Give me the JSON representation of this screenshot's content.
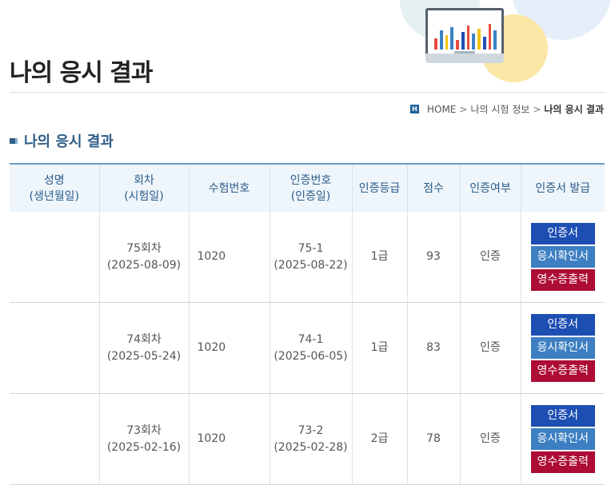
{
  "page": {
    "title": "나의 응시 결과"
  },
  "breadcrumb": {
    "home": "HOME",
    "items": [
      "나의 시험 정보",
      "나의 응시 결과"
    ],
    "separator": ">"
  },
  "section": {
    "title": "나의 응시 결과"
  },
  "table": {
    "headers": [
      [
        "성명",
        "(생년월일)"
      ],
      [
        "회차",
        "(시험일)"
      ],
      [
        "수험번호"
      ],
      [
        "인증번호",
        "(인증일)"
      ],
      [
        "인증등급"
      ],
      [
        "점수"
      ],
      [
        "인증여부"
      ],
      [
        "인증서 발급"
      ]
    ],
    "rows": [
      {
        "name": "",
        "session": "75회차",
        "exam_date": "(2025-08-09)",
        "exam_no": "1020",
        "cert_no": "75-1",
        "cert_date": "(2025-08-22)",
        "grade": "1급",
        "score": "93",
        "status": "인증"
      },
      {
        "name": "",
        "session": "74회차",
        "exam_date": "(2025-05-24)",
        "exam_no": "1020",
        "cert_no": "74-1",
        "cert_date": "(2025-06-05)",
        "grade": "1급",
        "score": "83",
        "status": "인증"
      },
      {
        "name": "",
        "session": "73회차",
        "exam_date": "(2025-02-16)",
        "exam_no": "1020",
        "cert_no": "73-2",
        "cert_date": "(2025-02-28)",
        "grade": "2급",
        "score": "78",
        "status": "인증"
      }
    ]
  },
  "buttons": {
    "certificate": "인증서",
    "exam_confirmation": "응시확인서",
    "receipt": "영수증출력"
  },
  "colors": {
    "title_accent": "#2e5d86",
    "btn_certificate": "#1d4fb3",
    "btn_confirmation": "#3d7fc2",
    "btn_receipt": "#ad0c34"
  },
  "icons": {
    "home": "home-icon",
    "section_marker": "square-bullet-icon",
    "illustration": "monitor-chart-illustration"
  }
}
